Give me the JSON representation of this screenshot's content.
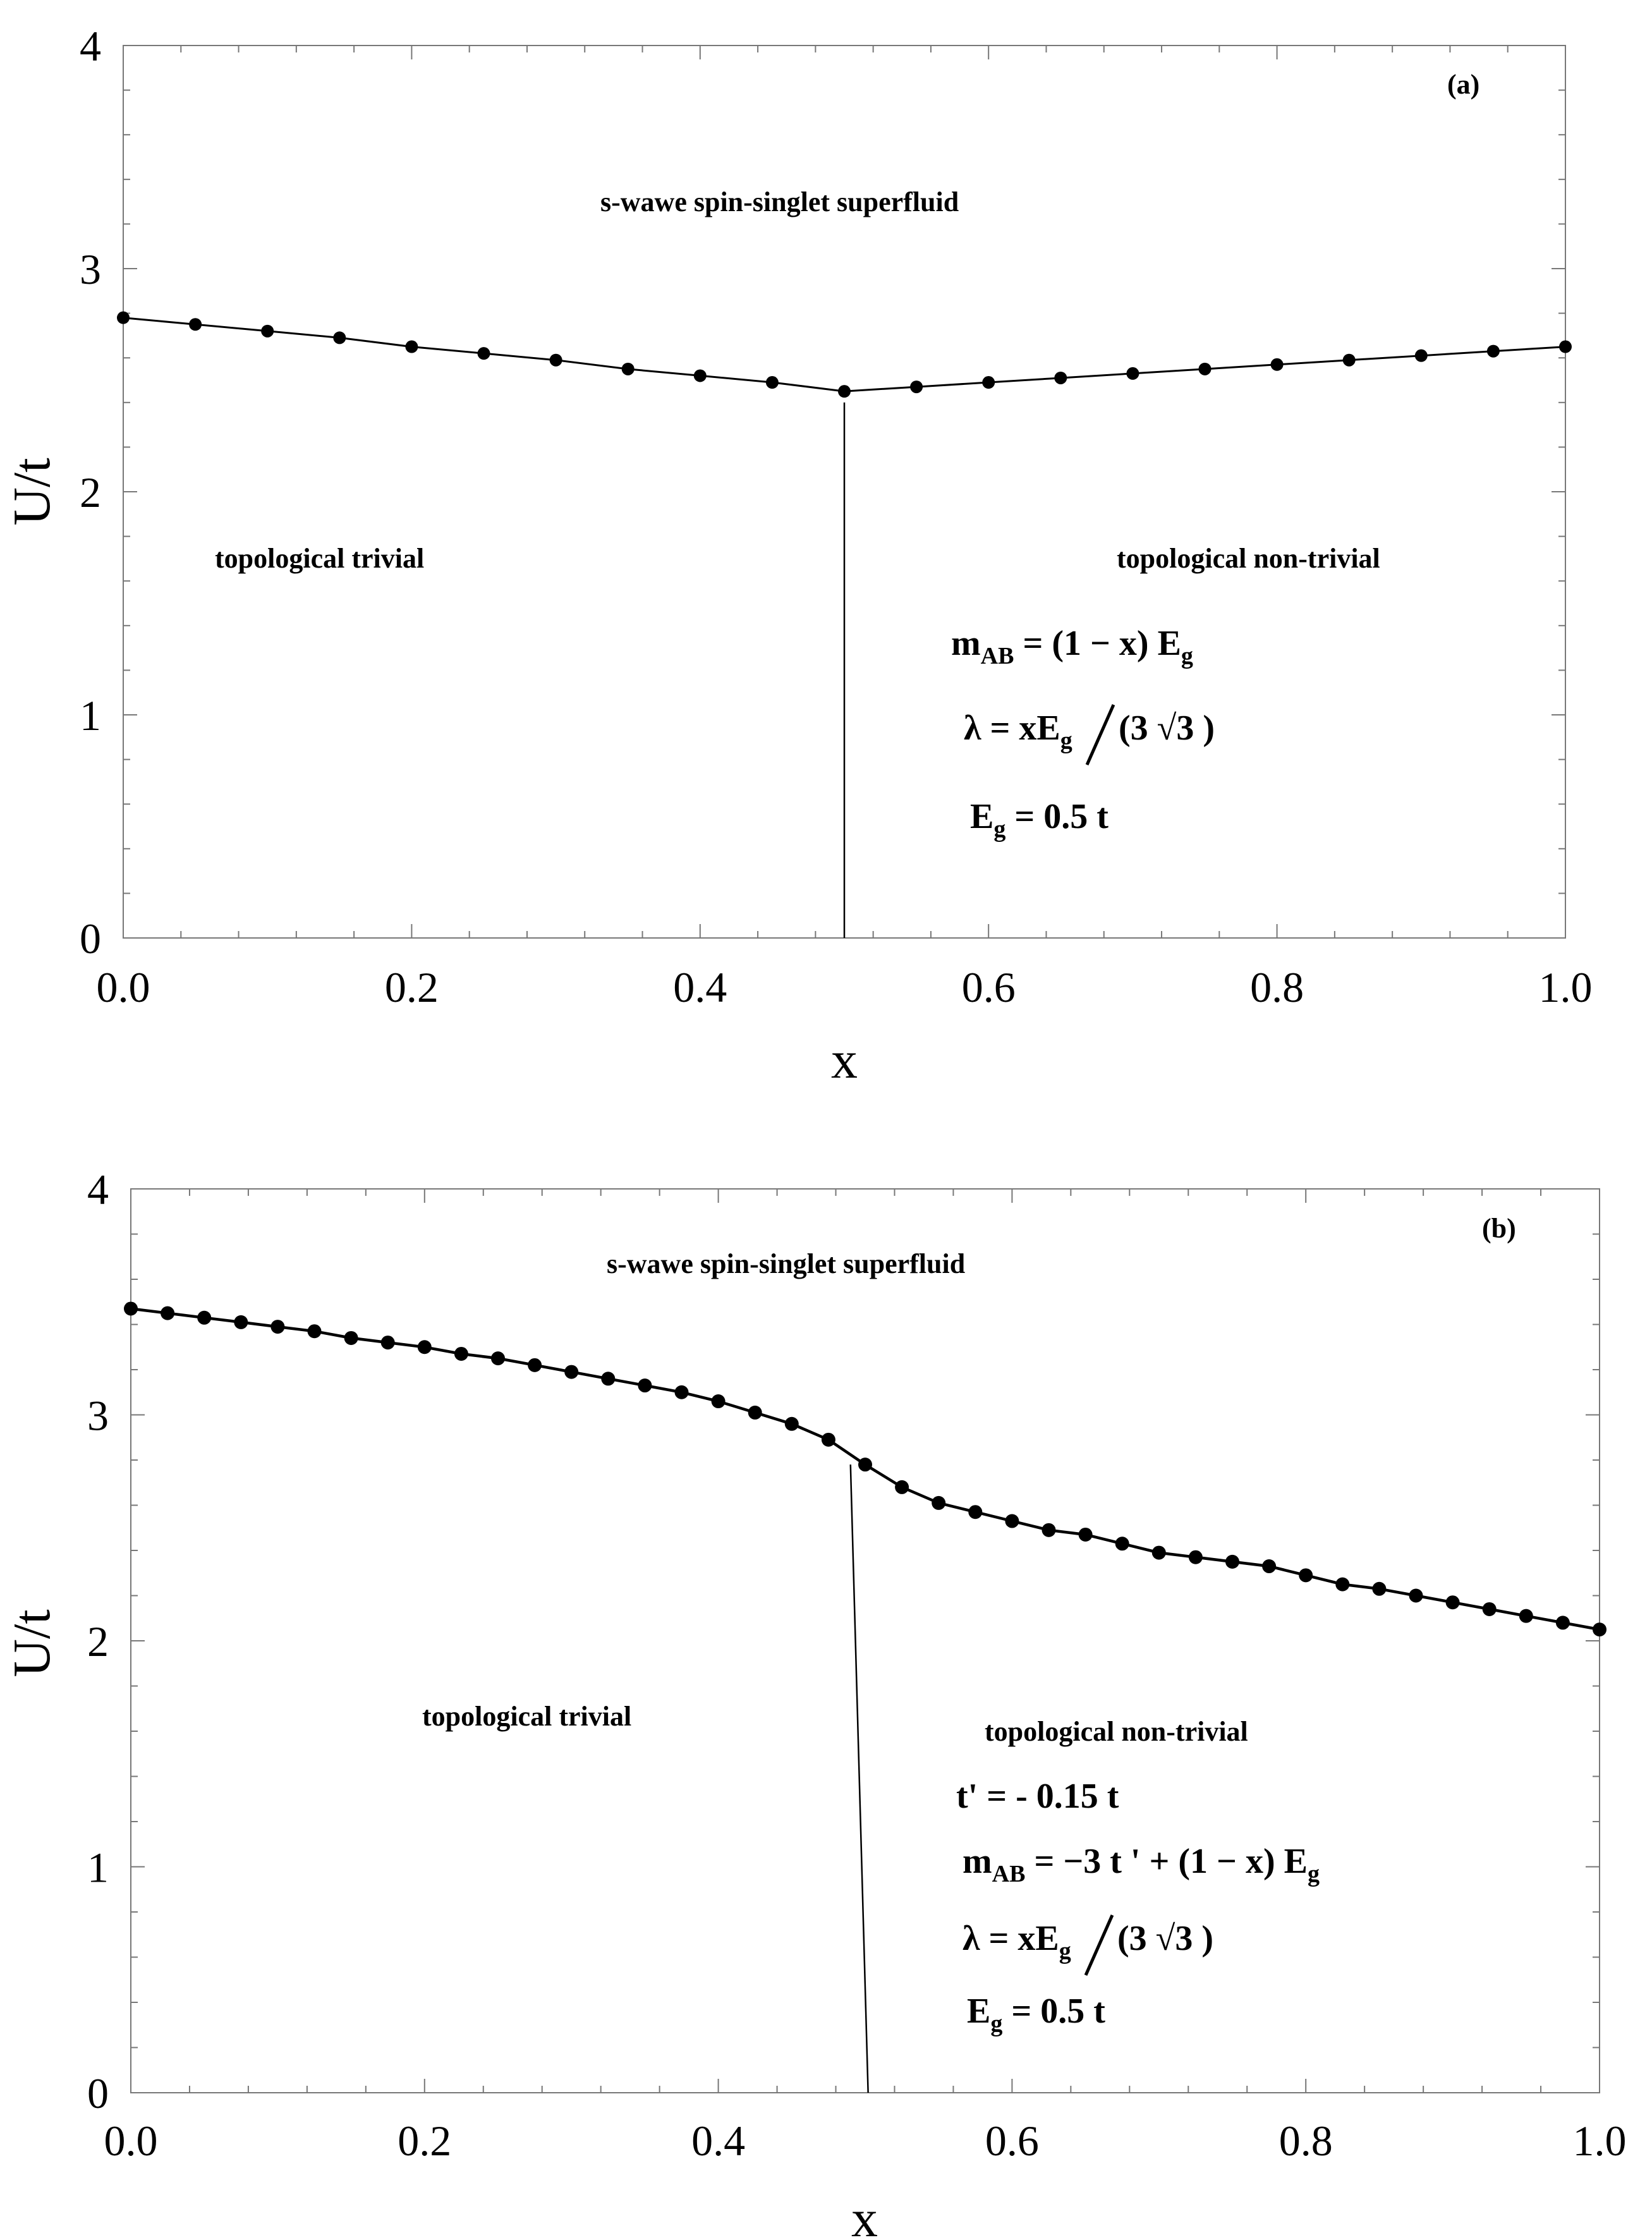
{
  "chart_data": [
    {
      "type": "line",
      "panel_label": "(a)",
      "xlabel": "x",
      "ylabel": "U/t",
      "xlim": [
        0,
        1
      ],
      "ylim": [
        0,
        4
      ],
      "x_ticks": [
        "0.0",
        "0.2",
        "0.4",
        "0.6",
        "0.8",
        "1.0"
      ],
      "y_ticks": [
        "0",
        "1",
        "2",
        "3",
        "4"
      ],
      "grid": false,
      "series": [
        {
          "x": [
            0.0,
            0.05,
            0.1,
            0.15,
            0.2,
            0.25,
            0.3,
            0.35,
            0.4,
            0.45,
            0.5,
            0.55,
            0.6,
            0.65,
            0.7,
            0.75,
            0.8,
            0.85,
            0.9,
            0.95,
            1.0
          ],
          "y": [
            2.78,
            2.75,
            2.72,
            2.69,
            2.65,
            2.62,
            2.59,
            2.55,
            2.52,
            2.49,
            2.45,
            2.47,
            2.49,
            2.51,
            2.53,
            2.55,
            2.57,
            2.59,
            2.61,
            2.63,
            2.65
          ]
        }
      ],
      "boundary": {
        "x": 0.5,
        "y_top": 2.4
      },
      "annotations": {
        "top_phase": "s-wawe spin-singlet superfluid",
        "left_phase": "topological trivial",
        "right_phase": "topological non-trivial"
      },
      "formulas": {
        "m_main": "m",
        "m_sub": "AB",
        "m_rhs": " = (1 − x) E",
        "m_rhs_sub": "g",
        "lambda_lhs": "λ = xE",
        "lambda_sub": "g",
        "lambda_rhs": "(3 √3 )",
        "eg_main": "E",
        "eg_sub": "g",
        "eg_rhs": " = 0.5 t"
      }
    },
    {
      "type": "line",
      "panel_label": "(b)",
      "xlabel": "x",
      "ylabel": "U/t",
      "xlim": [
        0,
        1
      ],
      "ylim": [
        0,
        4
      ],
      "x_ticks": [
        "0.0",
        "0.2",
        "0.4",
        "0.6",
        "0.8",
        "1.0"
      ],
      "y_ticks": [
        "0",
        "1",
        "2",
        "3",
        "4"
      ],
      "grid": false,
      "series": [
        {
          "x": [
            0.0,
            0.025,
            0.05,
            0.075,
            0.1,
            0.125,
            0.15,
            0.175,
            0.2,
            0.225,
            0.25,
            0.275,
            0.3,
            0.325,
            0.35,
            0.375,
            0.4,
            0.425,
            0.45,
            0.475,
            0.5,
            0.525,
            0.55,
            0.575,
            0.6,
            0.625,
            0.65,
            0.675,
            0.7,
            0.725,
            0.75,
            0.775,
            0.8,
            0.825,
            0.85,
            0.875,
            0.9,
            0.925,
            0.95,
            0.975,
            1.0
          ],
          "y": [
            3.47,
            3.45,
            3.43,
            3.41,
            3.39,
            3.37,
            3.34,
            3.32,
            3.3,
            3.27,
            3.25,
            3.22,
            3.19,
            3.16,
            3.13,
            3.1,
            3.06,
            3.01,
            2.96,
            2.89,
            2.78,
            2.68,
            2.61,
            2.57,
            2.53,
            2.49,
            2.47,
            2.43,
            2.39,
            2.37,
            2.35,
            2.33,
            2.29,
            2.25,
            2.23,
            2.2,
            2.17,
            2.14,
            2.11,
            2.08,
            2.05
          ]
        }
      ],
      "boundary": {
        "x_top": 0.49,
        "y_top": 2.78,
        "x_bottom": 0.502
      },
      "annotations": {
        "top_phase": "s-wawe spin-singlet superfluid",
        "left_phase": "topological trivial",
        "right_phase": "topological non-trivial"
      },
      "formulas": {
        "tprime": "t' = - 0.15 t",
        "m_main": "m",
        "m_sub": "AB",
        "m_rhs": " = −3 t ' + (1 − x) E",
        "m_rhs_sub": "g",
        "lambda_lhs": "λ = xE",
        "lambda_sub": "g",
        "lambda_rhs": "(3 √3 )",
        "eg_main": "E",
        "eg_sub": "g",
        "eg_rhs": " = 0.5 t"
      }
    }
  ]
}
